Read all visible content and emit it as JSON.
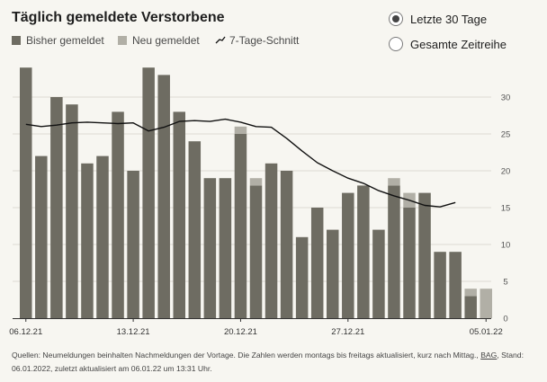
{
  "title": "Täglich gemeldete Verstorbene",
  "legend": {
    "reported_label": "Bisher gemeldet",
    "new_label": "Neu gemeldet",
    "avg_label": "7-Tage-Schnitt"
  },
  "period_selector": {
    "options": [
      {
        "label": "Letzte 30 Tage",
        "selected": true
      },
      {
        "label": "Gesamte Zeitreihe",
        "selected": false
      }
    ]
  },
  "footer": {
    "text_before_link": "Quellen: Neumeldungen beinhalten Nachmeldungen der Vortage. Die Zahlen werden montags bis freitags aktualisiert, kurz nach Mittag., ",
    "link_text": "BAG",
    "text_after_link": ", Stand: 06.01.2022, zuletzt aktualisiert am 06.01.22 um 13:31 Uhr."
  },
  "colors": {
    "reported": "#6e6c62",
    "new": "#b1afa6",
    "avg_line": "#111111",
    "grid": "#dcdbd4",
    "background": "#f7f6f1"
  },
  "chart_data": {
    "type": "bar",
    "stacked": true,
    "x": [
      "06.12.21",
      "07.12.21",
      "08.12.21",
      "09.12.21",
      "10.12.21",
      "11.12.21",
      "12.12.21",
      "13.12.21",
      "14.12.21",
      "15.12.21",
      "16.12.21",
      "17.12.21",
      "18.12.21",
      "19.12.21",
      "20.12.21",
      "21.12.21",
      "22.12.21",
      "23.12.21",
      "24.12.21",
      "25.12.21",
      "26.12.21",
      "27.12.21",
      "28.12.21",
      "29.12.21",
      "30.12.21",
      "31.12.21",
      "01.01.22",
      "02.01.22",
      "03.01.22",
      "04.01.22",
      "05.01.22"
    ],
    "xtick_labels": [
      "06.12.21",
      "13.12.21",
      "20.12.21",
      "27.12.21",
      "05.01.22"
    ],
    "series": [
      {
        "name": "Bisher gemeldet",
        "values": [
          34,
          22,
          30,
          29,
          21,
          22,
          28,
          20,
          34,
          33,
          28,
          24,
          19,
          19,
          25,
          18,
          21,
          20,
          11,
          15,
          12,
          17,
          18,
          12,
          18,
          15,
          17,
          9,
          9,
          3,
          0
        ]
      },
      {
        "name": "Neu gemeldet",
        "values": [
          0,
          0,
          0,
          0,
          0,
          0,
          0,
          0,
          0,
          0,
          0,
          0,
          0,
          0,
          1,
          1,
          0,
          0,
          0,
          0,
          0,
          0,
          0,
          0,
          1,
          2,
          0,
          0,
          0,
          1,
          4
        ]
      }
    ],
    "avg_series": {
      "name": "7-Tage-Schnitt",
      "values": [
        26.3,
        26.0,
        26.2,
        26.5,
        26.6,
        26.5,
        26.4,
        26.5,
        25.4,
        25.9,
        26.7,
        26.8,
        26.7,
        27.0,
        26.6,
        26.0,
        25.9,
        24.4,
        22.7,
        21.1,
        20.0,
        19.0,
        18.3,
        17.3,
        16.6,
        16.0,
        15.3,
        15.1,
        15.7,
        null,
        null
      ]
    },
    "ylim": [
      0,
      35
    ],
    "yticks": [
      0,
      5,
      10,
      15,
      20,
      25,
      30
    ],
    "y_axis_position": "right",
    "grid": true,
    "legend_position": "top-left"
  }
}
